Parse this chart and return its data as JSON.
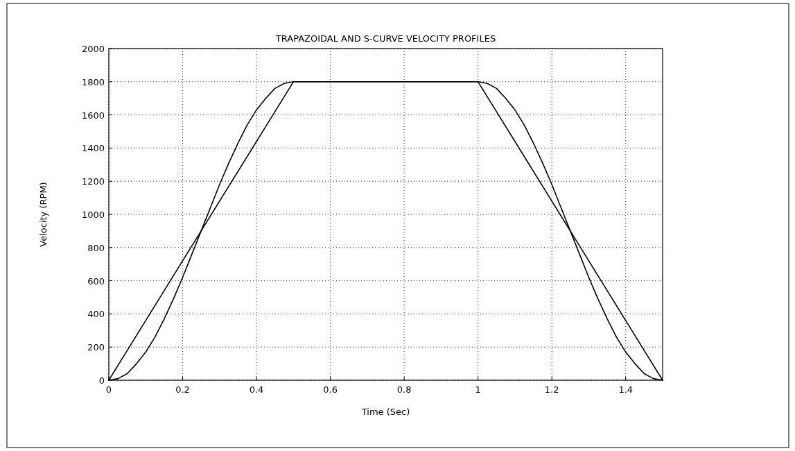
{
  "chart_data": {
    "type": "line",
    "title": "TRAPAZOIDAL AND S-CURVE VELOCITY PROFILES",
    "xlabel": "Time (Sec)",
    "ylabel": "Velocity (RPM)",
    "xlim": [
      0,
      1.5
    ],
    "ylim": [
      0,
      2000
    ],
    "xticks": [
      0,
      0.2,
      0.4,
      0.6,
      0.8,
      1,
      1.2,
      1.4
    ],
    "yticks": [
      0,
      200,
      400,
      600,
      800,
      1000,
      1200,
      1400,
      1600,
      1800,
      2000
    ],
    "grid": true,
    "line_style": "solid",
    "marker": "none",
    "series": [
      {
        "color": "#000000",
        "x": [
          0,
          0.5,
          1,
          1.5
        ],
        "values": [
          0,
          1800,
          1800,
          0
        ]
      },
      {
        "color": "#000000",
        "x": [
          0,
          0.025,
          0.05,
          0.075,
          0.1,
          0.125,
          0.15,
          0.175,
          0.2,
          0.225,
          0.25,
          0.275,
          0.3,
          0.325,
          0.35,
          0.375,
          0.4,
          0.425,
          0.45,
          0.475,
          0.5,
          1,
          1.025,
          1.05,
          1.075,
          1.1,
          1.125,
          1.15,
          1.175,
          1.2,
          1.225,
          1.25,
          1.275,
          1.3,
          1.325,
          1.35,
          1.375,
          1.4,
          1.425,
          1.45,
          1.475,
          1.5
        ],
        "values": [
          0,
          10,
          40,
          100,
          170,
          260,
          370,
          490,
          620,
          760,
          900,
          1040,
          1180,
          1310,
          1430,
          1540,
          1630,
          1700,
          1760,
          1790,
          1800,
          1800,
          1790,
          1760,
          1700,
          1630,
          1540,
          1430,
          1310,
          1180,
          1040,
          900,
          760,
          620,
          490,
          370,
          260,
          170,
          100,
          40,
          10,
          0
        ]
      }
    ]
  }
}
